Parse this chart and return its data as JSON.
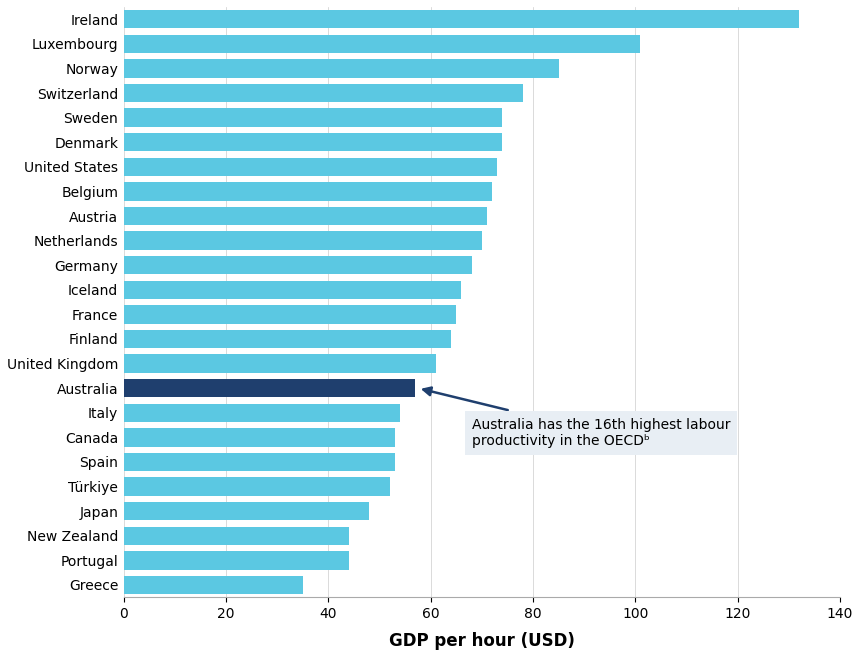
{
  "countries": [
    "Ireland",
    "Luxembourg",
    "Norway",
    "Switzerland",
    "Sweden",
    "Denmark",
    "United States",
    "Belgium",
    "Austria",
    "Netherlands",
    "Germany",
    "Iceland",
    "France",
    "Finland",
    "United Kingdom",
    "Australia",
    "Italy",
    "Canada",
    "Spain",
    "Türkiye",
    "Japan",
    "New Zealand",
    "Portugal",
    "Greece"
  ],
  "values": [
    132,
    101,
    85,
    78,
    74,
    74,
    73,
    72,
    71,
    70,
    68,
    66,
    65,
    64,
    61,
    57,
    54,
    53,
    53,
    52,
    48,
    44,
    44,
    35
  ],
  "highlight_country": "Australia",
  "bar_color": "#5BC8E2",
  "highlight_color": "#1F3F6E",
  "annotation_text": "Australia has the 16th highest labour\nproductivity in the OECDᵇ",
  "annotation_box_color": "#E8EEF4",
  "annotation_arrow_color": "#1F3F6E",
  "xlabel": "GDP per hour (USD)",
  "xlim": [
    0,
    140
  ],
  "xticks": [
    0,
    20,
    40,
    60,
    80,
    100,
    120,
    140
  ],
  "background_color": "#ffffff",
  "bar_height": 0.75,
  "figsize": [
    8.6,
    6.57
  ],
  "dpi": 100
}
